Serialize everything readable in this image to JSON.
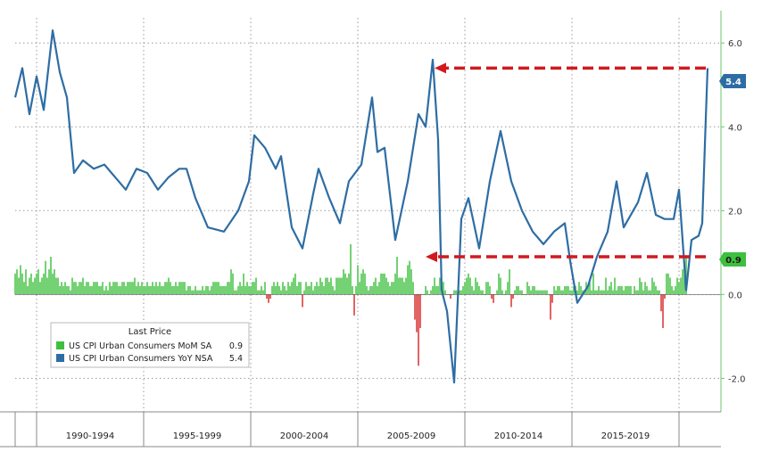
{
  "chart_data": {
    "type": "line",
    "title": "",
    "xlabel": "",
    "ylabel": "",
    "ylim": [
      -2.8,
      6.6
    ],
    "y_ticks": [
      "6.0",
      "4.0",
      "2.0",
      "0.0",
      "-2.0"
    ],
    "y_tick_values": [
      6.0,
      4.0,
      2.0,
      0.0,
      -2.0
    ],
    "x_range": [
      "1989-01",
      "2021-05"
    ],
    "x_categories": [
      "1990-1994",
      "1995-1999",
      "2000-2004",
      "2005-2009",
      "2010-2014",
      "2015-2019"
    ],
    "x_category_bounds": [
      [
        "1990-01",
        "1994-12"
      ],
      [
        "1995-01",
        "1999-12"
      ],
      [
        "2000-01",
        "2004-12"
      ],
      [
        "2005-01",
        "2009-12"
      ],
      [
        "2010-01",
        "2014-12"
      ],
      [
        "2015-01",
        "2019-12"
      ]
    ],
    "grid": true,
    "axis_side": "right",
    "legend_position": "bottom-left",
    "series": [
      {
        "name": "US CPI Urban Consumers YoY NSA",
        "kind": "line",
        "color": "#2e6da4",
        "last_value": "5.4",
        "points": [
          [
            "1989-01",
            4.7
          ],
          [
            "1989-05",
            5.4
          ],
          [
            "1989-09",
            4.3
          ],
          [
            "1990-01",
            5.2
          ],
          [
            "1990-05",
            4.4
          ],
          [
            "1990-10",
            6.3
          ],
          [
            "1991-02",
            5.3
          ],
          [
            "1991-06",
            4.7
          ],
          [
            "1991-10",
            2.9
          ],
          [
            "1992-03",
            3.2
          ],
          [
            "1992-09",
            3.0
          ],
          [
            "1993-03",
            3.1
          ],
          [
            "1993-09",
            2.8
          ],
          [
            "1994-03",
            2.5
          ],
          [
            "1994-09",
            3.0
          ],
          [
            "1995-03",
            2.9
          ],
          [
            "1995-09",
            2.5
          ],
          [
            "1996-03",
            2.8
          ],
          [
            "1996-09",
            3.0
          ],
          [
            "1997-01",
            3.0
          ],
          [
            "1997-06",
            2.3
          ],
          [
            "1998-01",
            1.6
          ],
          [
            "1998-10",
            1.5
          ],
          [
            "1999-06",
            2.0
          ],
          [
            "1999-12",
            2.7
          ],
          [
            "2000-03",
            3.8
          ],
          [
            "2000-09",
            3.5
          ],
          [
            "2001-03",
            3.0
          ],
          [
            "2001-06",
            3.3
          ],
          [
            "2001-12",
            1.6
          ],
          [
            "2002-06",
            1.1
          ],
          [
            "2002-12",
            2.4
          ],
          [
            "2003-03",
            3.0
          ],
          [
            "2003-09",
            2.3
          ],
          [
            "2004-03",
            1.7
          ],
          [
            "2004-08",
            2.7
          ],
          [
            "2005-03",
            3.1
          ],
          [
            "2005-09",
            4.7
          ],
          [
            "2005-12",
            3.4
          ],
          [
            "2006-04",
            3.5
          ],
          [
            "2006-10",
            1.3
          ],
          [
            "2007-05",
            2.7
          ],
          [
            "2007-11",
            4.3
          ],
          [
            "2008-03",
            4.0
          ],
          [
            "2008-07",
            5.6
          ],
          [
            "2008-10",
            3.7
          ],
          [
            "2008-12",
            0.1
          ],
          [
            "2009-03",
            -0.4
          ],
          [
            "2009-07",
            -2.1
          ],
          [
            "2009-11",
            1.8
          ],
          [
            "2010-03",
            2.3
          ],
          [
            "2010-09",
            1.1
          ],
          [
            "2011-03",
            2.7
          ],
          [
            "2011-09",
            3.9
          ],
          [
            "2012-03",
            2.7
          ],
          [
            "2012-09",
            2.0
          ],
          [
            "2013-03",
            1.5
          ],
          [
            "2013-09",
            1.2
          ],
          [
            "2014-03",
            1.5
          ],
          [
            "2014-09",
            1.7
          ],
          [
            "2014-12",
            0.8
          ],
          [
            "2015-04",
            -0.2
          ],
          [
            "2015-10",
            0.2
          ],
          [
            "2016-03",
            0.9
          ],
          [
            "2016-09",
            1.5
          ],
          [
            "2017-02",
            2.7
          ],
          [
            "2017-06",
            1.6
          ],
          [
            "2018-02",
            2.2
          ],
          [
            "2018-07",
            2.9
          ],
          [
            "2018-12",
            1.9
          ],
          [
            "2019-05",
            1.8
          ],
          [
            "2019-10",
            1.8
          ],
          [
            "2020-01",
            2.5
          ],
          [
            "2020-05",
            0.1
          ],
          [
            "2020-08",
            1.3
          ],
          [
            "2020-12",
            1.4
          ],
          [
            "2021-02",
            1.7
          ],
          [
            "2021-04",
            4.2
          ],
          [
            "2021-05",
            5.4
          ]
        ]
      },
      {
        "name": "US CPI Urban Consumers MoM SA",
        "kind": "bar",
        "color": "#3fbf3f",
        "negative_color": "#d62828",
        "last_value": "0.9",
        "monthly_values": [
          0.5,
          0.6,
          0.4,
          0.7,
          0.5,
          0.3,
          0.6,
          0.2,
          0.4,
          0.5,
          0.3,
          0.4,
          0.5,
          0.6,
          0.3,
          0.4,
          0.5,
          0.8,
          0.4,
          0.6,
          0.9,
          0.5,
          0.6,
          0.4,
          0.4,
          0.2,
          0.3,
          0.2,
          0.3,
          0.2,
          0.2,
          0.1,
          0.4,
          0.3,
          0.3,
          0.2,
          0.3,
          0.3,
          0.4,
          0.2,
          0.3,
          0.3,
          0.2,
          0.2,
          0.3,
          0.3,
          0.3,
          0.2,
          0.2,
          0.3,
          0.1,
          0.2,
          0.1,
          0.3,
          0.2,
          0.3,
          0.3,
          0.3,
          0.2,
          0.2,
          0.3,
          0.3,
          0.2,
          0.3,
          0.3,
          0.3,
          0.3,
          0.4,
          0.2,
          0.3,
          0.2,
          0.3,
          0.2,
          0.2,
          0.3,
          0.2,
          0.2,
          0.3,
          0.2,
          0.3,
          0.2,
          0.3,
          0.2,
          0.2,
          0.3,
          0.3,
          0.4,
          0.3,
          0.2,
          0.2,
          0.3,
          0.2,
          0.3,
          0.3,
          0.3,
          0.3,
          0.1,
          0.2,
          0.2,
          0.1,
          0.1,
          0.2,
          0.1,
          0.1,
          0.1,
          0.2,
          0.1,
          0.2,
          0.2,
          0.1,
          0.2,
          0.3,
          0.3,
          0.3,
          0.3,
          0.2,
          0.2,
          0.2,
          0.2,
          0.3,
          0.3,
          0.6,
          0.5,
          0.1,
          0.1,
          0.2,
          0.3,
          0.2,
          0.5,
          0.2,
          0.3,
          0.2,
          0.2,
          0.3,
          0.3,
          0.4,
          0.1,
          0.1,
          0.2,
          0.1,
          0.3,
          -0.1,
          -0.2,
          -0.1,
          0.2,
          0.3,
          0.2,
          0.3,
          0.2,
          0.1,
          0.3,
          0.2,
          0.1,
          0.3,
          0.2,
          0.3,
          0.4,
          0.5,
          0.2,
          0.3,
          0.3,
          -0.3,
          0.1,
          0.3,
          0.2,
          0.2,
          0.3,
          0.1,
          0.2,
          0.3,
          0.2,
          0.4,
          0.3,
          0.2,
          0.4,
          0.4,
          0.3,
          0.4,
          0.2,
          0.1,
          0.4,
          0.4,
          0.4,
          0.4,
          0.6,
          0.5,
          0.4,
          0.5,
          1.2,
          0.2,
          -0.5,
          0.2,
          0.7,
          0.3,
          0.5,
          0.6,
          0.5,
          0.2,
          0.1,
          0.2,
          0.2,
          0.3,
          0.4,
          0.2,
          0.3,
          0.5,
          0.5,
          0.5,
          0.4,
          0.3,
          0.2,
          0.3,
          0.3,
          0.5,
          0.9,
          0.4,
          0.4,
          0.4,
          0.3,
          0.4,
          0.7,
          0.8,
          0.6,
          0.3,
          -0.6,
          -0.9,
          -1.7,
          -0.8,
          0.0,
          0.0,
          0.2,
          0.1,
          0.0,
          0.1,
          0.2,
          0.4,
          0.2,
          0.2,
          0.4,
          0.1,
          0.3,
          0.1,
          0.0,
          0.0,
          -0.1,
          0.0,
          0.1,
          0.1,
          0.1,
          0.1,
          0.1,
          0.2,
          0.3,
          0.4,
          0.5,
          0.4,
          0.2,
          0.1,
          0.4,
          0.3,
          0.2,
          0.1,
          0.1,
          0.0,
          0.3,
          0.3,
          0.2,
          -0.1,
          -0.2,
          0.0,
          0.1,
          0.5,
          0.4,
          0.1,
          0.0,
          0.1,
          0.3,
          0.6,
          -0.3,
          -0.1,
          0.1,
          0.2,
          0.2,
          0.1,
          0.1,
          0.0,
          0.0,
          0.3,
          0.2,
          0.1,
          0.2,
          0.2,
          0.1,
          0.1,
          0.1,
          0.1,
          0.1,
          0.1,
          0.1,
          0.0,
          -0.6,
          -0.2,
          0.2,
          0.1,
          0.2,
          0.2,
          0.1,
          0.1,
          0.2,
          0.2,
          0.2,
          0.1,
          0.1,
          0.2,
          0.2,
          0.1,
          0.3,
          0.2,
          0.1,
          0.1,
          0.3,
          0.2,
          0.3,
          0.1,
          0.5,
          0.1,
          0.1,
          0.2,
          0.1,
          0.1,
          0.1,
          0.4,
          0.1,
          0.2,
          0.3,
          0.1,
          0.4,
          0.1,
          0.2,
          0.2,
          0.2,
          0.1,
          0.2,
          0.2,
          0.2,
          0.2,
          0.0,
          0.2,
          0.1,
          0.1,
          0.4,
          0.3,
          0.1,
          0.3,
          0.2,
          0.1,
          0.1,
          0.4,
          0.3,
          0.2,
          0.1,
          0.1,
          -0.4,
          -0.8,
          -0.1,
          0.5,
          0.5,
          0.4,
          0.2,
          0.1,
          0.2,
          0.4,
          0.3,
          0.4,
          0.6,
          0.8,
          0.9
        ]
      }
    ],
    "annotations": [
      {
        "kind": "arrow",
        "style": "dashed",
        "color": "#d0191f",
        "from": [
          "2021-04",
          5.4
        ],
        "to": [
          "2008-08",
          5.4
        ]
      },
      {
        "kind": "arrow",
        "style": "dashed",
        "color": "#d0191f",
        "from": [
          "2021-04",
          0.9
        ],
        "to": [
          "2008-03",
          0.9
        ]
      }
    ]
  },
  "legend": {
    "title": "Last Price",
    "items": [
      {
        "label": "US CPI Urban Consumers MoM SA",
        "value": "0.9",
        "color": "#3fbf3f"
      },
      {
        "label": "US CPI Urban Consumers YoY NSA",
        "value": "5.4",
        "color": "#2e6da4"
      }
    ]
  },
  "badges": {
    "yoy": {
      "text": "5.4",
      "color": "#2e6da4"
    },
    "mom": {
      "text": "0.9",
      "color": "#3fbf3f"
    }
  }
}
